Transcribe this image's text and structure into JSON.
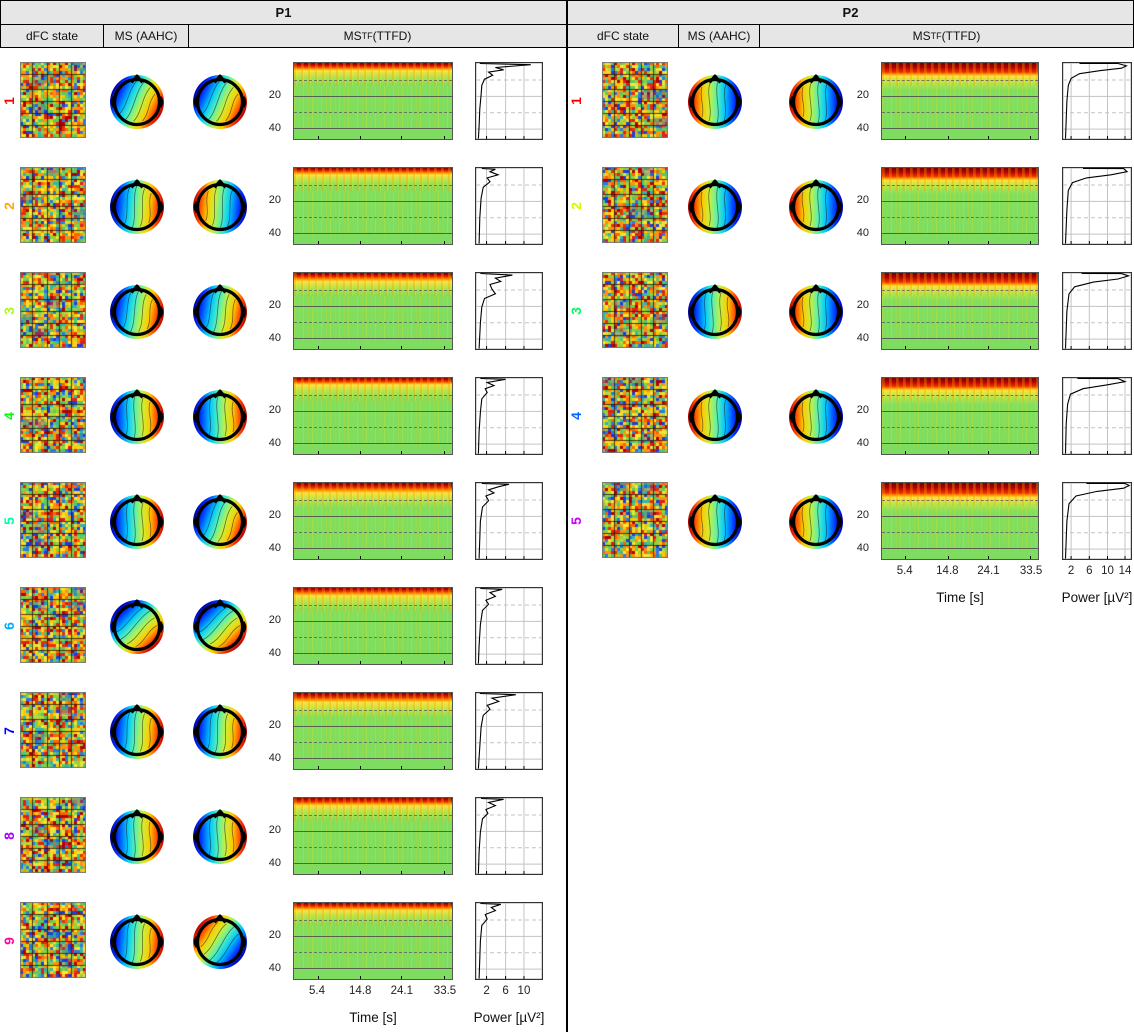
{
  "figure": {
    "header_bg": "#e6e6e6",
    "divider_color": "#000000",
    "panels": [
      {
        "title": "P1",
        "col1": "dFC state",
        "col2": "MS (AAHC)",
        "col3_pre": "MS",
        "col3_sub": "TF",
        "col3_post": " (TTFD)",
        "freq_ticks": [
          "20",
          "40"
        ],
        "time_axis": {
          "label": "Time [s]",
          "ticks": [
            "5.4",
            "14.8",
            "24.1",
            "33.5"
          ]
        },
        "power_axis": {
          "label": "Power [µV²]",
          "ticks": [
            "2",
            "6",
            "10"
          ]
        },
        "states": [
          {
            "label": "1",
            "color": "#ff0000",
            "ms_angle": 115,
            "tf_angle": 115,
            "spec": [
              0.02,
              0.05,
              0.1,
              0.18
            ],
            "power_curve": [
              [
                0.07,
                0
              ],
              [
                0.82,
                0.035
              ],
              [
                0.3,
                0.07
              ],
              [
                0.42,
                0.1
              ],
              [
                0.2,
                0.13
              ],
              [
                0.26,
                0.17
              ],
              [
                0.14,
                0.22
              ],
              [
                0.1,
                0.3
              ],
              [
                0.09,
                0.42
              ],
              [
                0.07,
                0.6
              ],
              [
                0.06,
                0.82
              ],
              [
                0.05,
                1
              ]
            ]
          },
          {
            "label": "2",
            "color": "#ffaa00",
            "ms_angle": 95,
            "tf_angle": 275,
            "spec": [
              0.015,
              0.04,
              0.09,
              0.16
            ],
            "power_curve": [
              [
                0.1,
                0
              ],
              [
                0.3,
                0.03
              ],
              [
                0.22,
                0.06
              ],
              [
                0.34,
                0.1
              ],
              [
                0.18,
                0.14
              ],
              [
                0.22,
                0.19
              ],
              [
                0.12,
                0.26
              ],
              [
                0.09,
                0.4
              ],
              [
                0.07,
                0.65
              ],
              [
                0.06,
                1
              ]
            ]
          },
          {
            "label": "3",
            "color": "#aaff00",
            "ms_angle": 100,
            "tf_angle": 100,
            "spec": [
              0.02,
              0.05,
              0.11,
              0.19
            ],
            "power_curve": [
              [
                0.08,
                0
              ],
              [
                0.55,
                0.04
              ],
              [
                0.3,
                0.08
              ],
              [
                0.38,
                0.12
              ],
              [
                0.22,
                0.16
              ],
              [
                0.25,
                0.22
              ],
              [
                0.3,
                0.28
              ],
              [
                0.14,
                0.34
              ],
              [
                0.1,
                0.45
              ],
              [
                0.08,
                0.65
              ],
              [
                0.06,
                1
              ]
            ]
          },
          {
            "label": "4",
            "color": "#00ff00",
            "ms_angle": 90,
            "tf_angle": 90,
            "spec": [
              0.015,
              0.045,
              0.09,
              0.17
            ],
            "power_curve": [
              [
                0.08,
                0
              ],
              [
                0.45,
                0.03
              ],
              [
                0.18,
                0.07
              ],
              [
                0.28,
                0.11
              ],
              [
                0.15,
                0.15
              ],
              [
                0.18,
                0.2
              ],
              [
                0.1,
                0.28
              ],
              [
                0.08,
                0.45
              ],
              [
                0.06,
                0.7
              ],
              [
                0.05,
                1
              ]
            ]
          },
          {
            "label": "5",
            "color": "#00ffaa",
            "ms_angle": 90,
            "tf_angle": 110,
            "spec": [
              0.025,
              0.06,
              0.13,
              0.22
            ],
            "power_curve": [
              [
                0.1,
                0
              ],
              [
                0.5,
                0.03
              ],
              [
                0.35,
                0.06
              ],
              [
                0.2,
                0.1
              ],
              [
                0.28,
                0.14
              ],
              [
                0.16,
                0.18
              ],
              [
                0.2,
                0.24
              ],
              [
                0.11,
                0.32
              ],
              [
                0.08,
                0.5
              ],
              [
                0.06,
                1
              ]
            ]
          },
          {
            "label": "6",
            "color": "#00aaff",
            "ms_angle": 135,
            "tf_angle": 135,
            "spec": [
              0.015,
              0.045,
              0.1,
              0.18
            ],
            "power_curve": [
              [
                0.08,
                0
              ],
              [
                0.4,
                0.03
              ],
              [
                0.22,
                0.07
              ],
              [
                0.3,
                0.12
              ],
              [
                0.16,
                0.17
              ],
              [
                0.2,
                0.22
              ],
              [
                0.11,
                0.3
              ],
              [
                0.08,
                0.48
              ],
              [
                0.06,
                0.75
              ],
              [
                0.05,
                1
              ]
            ]
          },
          {
            "label": "7",
            "color": "#0000ff",
            "ms_angle": 95,
            "tf_angle": 95,
            "spec": [
              0.02,
              0.06,
              0.12,
              0.22
            ],
            "power_curve": [
              [
                0.07,
                0
              ],
              [
                0.6,
                0.035
              ],
              [
                0.25,
                0.08
              ],
              [
                0.35,
                0.12
              ],
              [
                0.18,
                0.17
              ],
              [
                0.22,
                0.22
              ],
              [
                0.12,
                0.3
              ],
              [
                0.09,
                0.45
              ],
              [
                0.07,
                0.7
              ],
              [
                0.05,
                1
              ]
            ]
          },
          {
            "label": "8",
            "color": "#aa00ff",
            "ms_angle": 90,
            "tf_angle": 90,
            "spec": [
              0.015,
              0.05,
              0.1,
              0.18
            ],
            "power_curve": [
              [
                0.09,
                0
              ],
              [
                0.42,
                0.03
              ],
              [
                0.2,
                0.07
              ],
              [
                0.3,
                0.11
              ],
              [
                0.16,
                0.16
              ],
              [
                0.19,
                0.21
              ],
              [
                0.11,
                0.28
              ],
              [
                0.08,
                0.45
              ],
              [
                0.06,
                0.7
              ],
              [
                0.05,
                1
              ]
            ]
          },
          {
            "label": "9",
            "color": "#ff00aa",
            "ms_angle": 95,
            "tf_angle": 305,
            "spec": [
              0.015,
              0.045,
              0.095,
              0.17
            ],
            "power_curve": [
              [
                0.08,
                0
              ],
              [
                0.38,
                0.03
              ],
              [
                0.24,
                0.07
              ],
              [
                0.3,
                0.11
              ],
              [
                0.15,
                0.16
              ],
              [
                0.18,
                0.22
              ],
              [
                0.1,
                0.3
              ],
              [
                0.08,
                0.5
              ],
              [
                0.06,
                1
              ]
            ]
          }
        ]
      },
      {
        "title": "P2",
        "col1": "dFC state",
        "col2": "MS (AAHC)",
        "col3_pre": "MS",
        "col3_sub": "TF",
        "col3_post": " (TTFD)",
        "freq_ticks": [
          "20",
          "40"
        ],
        "time_axis": {
          "label": "Time [s]",
          "ticks": [
            "5.4",
            "14.8",
            "24.1",
            "33.5"
          ]
        },
        "power_axis": {
          "label": "Power [µV²]",
          "ticks": [
            "2",
            "6",
            "10",
            "14"
          ]
        },
        "states": [
          {
            "label": "1",
            "color": "#ff0000",
            "ms_angle": 270,
            "tf_angle": 270,
            "spec": [
              0.055,
              0.12,
              0.17,
              0.26
            ],
            "power_curve": [
              [
                0.25,
                0
              ],
              [
                0.8,
                0.015
              ],
              [
                0.92,
                0.05
              ],
              [
                0.85,
                0.08
              ],
              [
                0.55,
                0.11
              ],
              [
                0.25,
                0.15
              ],
              [
                0.13,
                0.21
              ],
              [
                0.09,
                0.3
              ],
              [
                0.07,
                0.5
              ],
              [
                0.05,
                1
              ]
            ]
          },
          {
            "label": "2",
            "color": "#ccff00",
            "ms_angle": 270,
            "tf_angle": 270,
            "spec": [
              0.05,
              0.11,
              0.16,
              0.24
            ],
            "power_curve": [
              [
                0.3,
                0
              ],
              [
                0.88,
                0.02
              ],
              [
                0.93,
                0.06
              ],
              [
                0.7,
                0.1
              ],
              [
                0.35,
                0.14
              ],
              [
                0.15,
                0.2
              ],
              [
                0.09,
                0.3
              ],
              [
                0.07,
                0.55
              ],
              [
                0.05,
                1
              ]
            ]
          },
          {
            "label": "3",
            "color": "#00ff66",
            "ms_angle": 90,
            "tf_angle": 270,
            "spec": [
              0.055,
              0.12,
              0.17,
              0.26
            ],
            "power_curve": [
              [
                0.28,
                0
              ],
              [
                0.85,
                0.02
              ],
              [
                0.95,
                0.05
              ],
              [
                0.8,
                0.09
              ],
              [
                0.45,
                0.13
              ],
              [
                0.18,
                0.19
              ],
              [
                0.1,
                0.28
              ],
              [
                0.07,
                0.5
              ],
              [
                0.05,
                1
              ]
            ]
          },
          {
            "label": "4",
            "color": "#0066ff",
            "ms_angle": 270,
            "tf_angle": 270,
            "spec": [
              0.05,
              0.11,
              0.16,
              0.25
            ],
            "power_curve": [
              [
                0.22,
                0
              ],
              [
                0.8,
                0.02
              ],
              [
                0.9,
                0.06
              ],
              [
                0.65,
                0.1
              ],
              [
                0.3,
                0.15
              ],
              [
                0.12,
                0.22
              ],
              [
                0.08,
                0.35
              ],
              [
                0.06,
                0.6
              ],
              [
                0.05,
                1
              ]
            ]
          },
          {
            "label": "5",
            "color": "#cc00ff",
            "ms_angle": 270,
            "tf_angle": 270,
            "spec": [
              0.06,
              0.13,
              0.19,
              0.28
            ],
            "power_curve": [
              [
                0.35,
                0
              ],
              [
                0.9,
                0.015
              ],
              [
                0.96,
                0.045
              ],
              [
                0.88,
                0.08
              ],
              [
                0.5,
                0.12
              ],
              [
                0.2,
                0.18
              ],
              [
                0.1,
                0.28
              ],
              [
                0.07,
                0.5
              ],
              [
                0.05,
                1
              ]
            ]
          }
        ]
      }
    ]
  },
  "chart_data": [
    {
      "panel": "P1",
      "type": "heatmap",
      "states": [
        1,
        2,
        3,
        4,
        5,
        6,
        7,
        8,
        9
      ],
      "row_components": [
        "dFC state correlation matrix",
        "MS (AAHC) topography",
        "MS_TF (TTFD) topography",
        "time-frequency power spectrogram",
        "power spectrum line plot"
      ],
      "time_axis": {
        "label": "Time [s]",
        "ticks": [
          5.4,
          14.8,
          24.1,
          33.5
        ],
        "range": [
          0,
          35.4
        ]
      },
      "frequency_axis": {
        "ticks": [
          20,
          40
        ],
        "range": [
          2,
          47
        ],
        "gridlines_solid": [
          20,
          40
        ],
        "gridlines_dashed": [
          10,
          30
        ]
      },
      "power_axis": {
        "label": "Power [µV²]",
        "ticks": [
          2,
          6,
          10
        ],
        "range": [
          0,
          14
        ]
      },
      "spectrogram_summary": "high power (red/orange) below ~8 Hz, moderate green 10-47 Hz with vertical bursts",
      "colormap": "jet"
    },
    {
      "panel": "P2",
      "type": "heatmap",
      "states": [
        1,
        2,
        3,
        4,
        5
      ],
      "row_components": [
        "dFC state correlation matrix",
        "MS (AAHC) topography",
        "MS_TF (TTFD) topography",
        "time-frequency power spectrogram",
        "power spectrum line plot"
      ],
      "time_axis": {
        "label": "Time [s]",
        "ticks": [
          5.4,
          14.8,
          24.1,
          33.5
        ],
        "range": [
          0,
          35.4
        ]
      },
      "frequency_axis": {
        "ticks": [
          20,
          40
        ],
        "range": [
          2,
          47
        ],
        "gridlines_solid": [
          20,
          40
        ],
        "gridlines_dashed": [
          10,
          30
        ]
      },
      "power_axis": {
        "label": "Power [µV²]",
        "ticks": [
          2,
          6,
          10,
          14
        ],
        "range": [
          0,
          15.5
        ]
      },
      "spectrogram_summary": "strong dark-red band below ~10 Hz, uniform green above",
      "colormap": "jet"
    }
  ]
}
